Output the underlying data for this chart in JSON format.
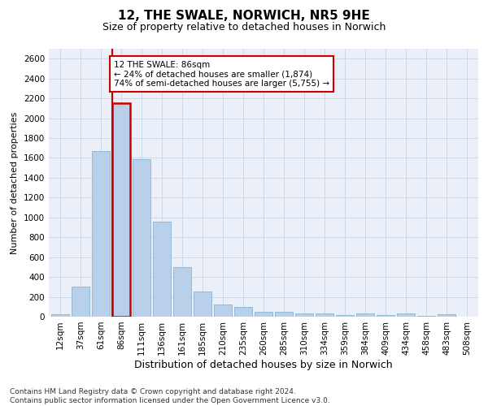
{
  "title": "12, THE SWALE, NORWICH, NR5 9HE",
  "subtitle": "Size of property relative to detached houses in Norwich",
  "xlabel": "Distribution of detached houses by size in Norwich",
  "ylabel": "Number of detached properties",
  "bar_labels": [
    "12sqm",
    "37sqm",
    "61sqm",
    "86sqm",
    "111sqm",
    "136sqm",
    "161sqm",
    "185sqm",
    "210sqm",
    "235sqm",
    "260sqm",
    "285sqm",
    "310sqm",
    "334sqm",
    "359sqm",
    "384sqm",
    "409sqm",
    "434sqm",
    "458sqm",
    "483sqm",
    "508sqm"
  ],
  "bar_values": [
    25,
    300,
    1670,
    2150,
    1590,
    960,
    500,
    250,
    120,
    100,
    50,
    50,
    35,
    35,
    20,
    30,
    20,
    30,
    5,
    25,
    0
  ],
  "bar_color": "#b8d0ea",
  "bar_edge_color": "#7aaad0",
  "highlight_index": 3,
  "highlight_color": "#cc0000",
  "annotation_text": "12 THE SWALE: 86sqm\n← 24% of detached houses are smaller (1,874)\n74% of semi-detached houses are larger (5,755) →",
  "annotation_box_color": "#ffffff",
  "annotation_box_edge": "#cc0000",
  "ylim": [
    0,
    2700
  ],
  "yticks": [
    0,
    200,
    400,
    600,
    800,
    1000,
    1200,
    1400,
    1600,
    1800,
    2000,
    2200,
    2400,
    2600
  ],
  "grid_color": "#c8d4e8",
  "background_color": "#eaeff8",
  "footer_line1": "Contains HM Land Registry data © Crown copyright and database right 2024.",
  "footer_line2": "Contains public sector information licensed under the Open Government Licence v3.0.",
  "title_fontsize": 11,
  "subtitle_fontsize": 9,
  "xlabel_fontsize": 9,
  "ylabel_fontsize": 8,
  "tick_fontsize": 7.5,
  "footer_fontsize": 6.5
}
